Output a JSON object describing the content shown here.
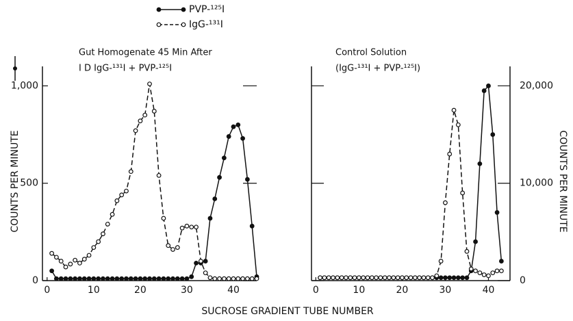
{
  "x_label": "SUCROSE GRADIENT TUBE NUMBER",
  "chart_data": [
    {
      "type": "line",
      "title": "Gut Homogenate 45 Min After",
      "subtitle": "I D IgG-¹³¹I + PVP-¹²⁵I",
      "y_label": "COUNTS PER MINUTE",
      "x": [
        1,
        2,
        3,
        4,
        5,
        6,
        7,
        8,
        9,
        10,
        11,
        12,
        13,
        14,
        15,
        16,
        17,
        18,
        19,
        20,
        21,
        22,
        23,
        24,
        25,
        26,
        27,
        28,
        29,
        30,
        31,
        32,
        33,
        34,
        35,
        36,
        37,
        38,
        39,
        40,
        41,
        42,
        43,
        44,
        45
      ],
      "xlim": [
        -1,
        45
      ],
      "xticks": [
        0,
        10,
        20,
        30,
        40
      ],
      "ylim": [
        0,
        1100
      ],
      "yticks": [
        0,
        500,
        {
          "value": 1000,
          "label": "1,000"
        }
      ],
      "series": [
        {
          "name": "PVP-¹²⁵I",
          "color": "#111111",
          "line": "solid",
          "marker": "filled",
          "values": [
            50,
            10,
            10,
            10,
            10,
            10,
            10,
            10,
            10,
            10,
            10,
            10,
            10,
            10,
            10,
            10,
            10,
            10,
            10,
            10,
            10,
            10,
            10,
            10,
            10,
            10,
            10,
            10,
            10,
            10,
            20,
            90,
            90,
            100,
            320,
            420,
            530,
            630,
            740,
            790,
            800,
            730,
            520,
            280,
            20
          ]
        },
        {
          "name": "IgG-¹³¹I",
          "color": "#111111",
          "line": "dashed",
          "marker": "open",
          "values": [
            140,
            120,
            100,
            70,
            85,
            105,
            90,
            110,
            130,
            170,
            200,
            240,
            290,
            340,
            410,
            440,
            460,
            560,
            770,
            820,
            850,
            1010,
            870,
            540,
            320,
            180,
            160,
            170,
            270,
            280,
            275,
            275,
            100,
            40,
            15,
            10,
            10,
            10,
            10,
            10,
            10,
            10,
            10,
            10,
            10
          ]
        }
      ]
    },
    {
      "type": "line",
      "title": "Control Solution",
      "subtitle": "(IgG-¹³¹I + PVP-¹²⁵I)",
      "y_label": "COUNTS PER MINUTE",
      "x": [
        1,
        2,
        3,
        4,
        5,
        6,
        7,
        8,
        9,
        10,
        11,
        12,
        13,
        14,
        15,
        16,
        17,
        18,
        19,
        20,
        21,
        22,
        23,
        24,
        25,
        26,
        27,
        28,
        29,
        30,
        31,
        32,
        33,
        34,
        35,
        36,
        37,
        38,
        39,
        40,
        41,
        42,
        43,
        44,
        45
      ],
      "xlim": [
        -1,
        45
      ],
      "xticks": [
        0,
        10,
        20,
        30,
        40
      ],
      "y2lim": [
        0,
        22000
      ],
      "y2ticks": [
        0,
        {
          "value": 10000,
          "label": "10,000"
        },
        {
          "value": 20000,
          "label": "20,000"
        }
      ],
      "series": [
        {
          "axis": "y2",
          "color": "#111111",
          "line": "solid",
          "marker": "filled",
          "values": [
            300,
            300,
            300,
            300,
            300,
            300,
            300,
            300,
            300,
            300,
            300,
            300,
            300,
            300,
            300,
            300,
            300,
            300,
            300,
            300,
            300,
            300,
            300,
            300,
            300,
            300,
            300,
            300,
            300,
            300,
            300,
            300,
            300,
            300,
            300,
            1000,
            4000,
            12000,
            19500,
            20000,
            15000,
            7000,
            2000,
            null,
            null
          ]
        },
        {
          "axis": "y2",
          "color": "#111111",
          "line": "dashed",
          "marker": "open",
          "values": [
            300,
            300,
            300,
            300,
            300,
            300,
            300,
            300,
            300,
            300,
            300,
            300,
            300,
            300,
            300,
            300,
            300,
            300,
            300,
            300,
            300,
            300,
            300,
            300,
            300,
            300,
            300,
            500,
            2000,
            8000,
            13000,
            17500,
            16000,
            9000,
            3000,
            1200,
            1000,
            800,
            600,
            500,
            800,
            1000,
            1000,
            null,
            null
          ]
        }
      ]
    }
  ]
}
